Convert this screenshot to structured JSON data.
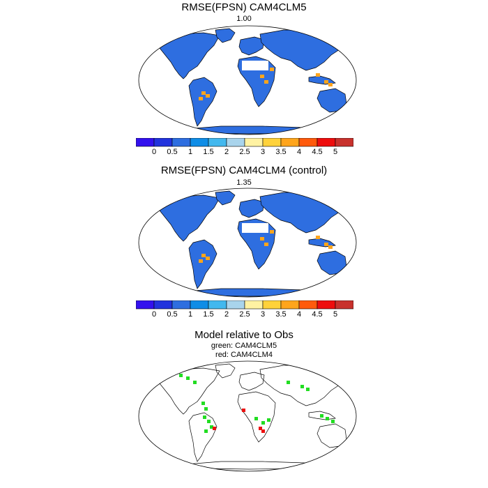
{
  "panels": [
    {
      "title": "RMSE(FPSN) CAM4CLM5",
      "value": "1.00"
    },
    {
      "title": "RMSE(FPSN) CAM4CLM4 (control)",
      "value": "1.35"
    }
  ],
  "comparison": {
    "title": "Model relative to Obs",
    "legend_green": "green: CAM4CLM5",
    "legend_red": "red: CAM4CLM4"
  },
  "colorbar": {
    "labels": [
      "0",
      "0.5",
      "1",
      "1.5",
      "2",
      "2.5",
      "3",
      "3.5",
      "4",
      "4.5",
      "5"
    ],
    "colors": [
      "#3311ee",
      "#2233dd",
      "#2e6ee0",
      "#0f8de6",
      "#42b8ee",
      "#a9d4ec",
      "#fff2a2",
      "#ffd23a",
      "#ffa51c",
      "#ff5a0c",
      "#ee0d0d",
      "#c8322d"
    ]
  },
  "colors": {
    "clm5_better": "#22dd22",
    "clm4_better": "#ee1111",
    "low_error": "#2e6ee0",
    "high_error": "#ffa51c"
  }
}
